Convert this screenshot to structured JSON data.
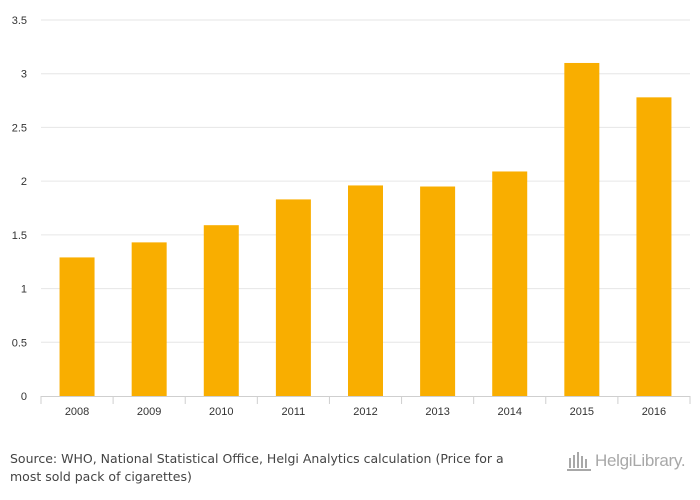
{
  "chart_data": {
    "type": "bar",
    "categories": [
      "2008",
      "2009",
      "2010",
      "2011",
      "2012",
      "2013",
      "2014",
      "2015",
      "2016"
    ],
    "values": [
      1.29,
      1.43,
      1.59,
      1.83,
      1.96,
      1.95,
      2.09,
      3.1,
      2.78
    ],
    "ylim": [
      0,
      3.5
    ],
    "yticks": [
      "0",
      "0.5",
      "1",
      "1.5",
      "2",
      "2.5",
      "3",
      "3.5"
    ],
    "title": "",
    "xlabel": "",
    "ylabel": "",
    "grid": true,
    "bar_color": "#F9AE00"
  },
  "footer": {
    "source_label": "Source:",
    "source_text": "WHO, National Statistical Office, Helgi Analytics calculation (Price for a most sold pack of cigarettes)"
  },
  "logo": {
    "text": "HelgiLibrary.",
    "icon": "library-building-icon"
  }
}
